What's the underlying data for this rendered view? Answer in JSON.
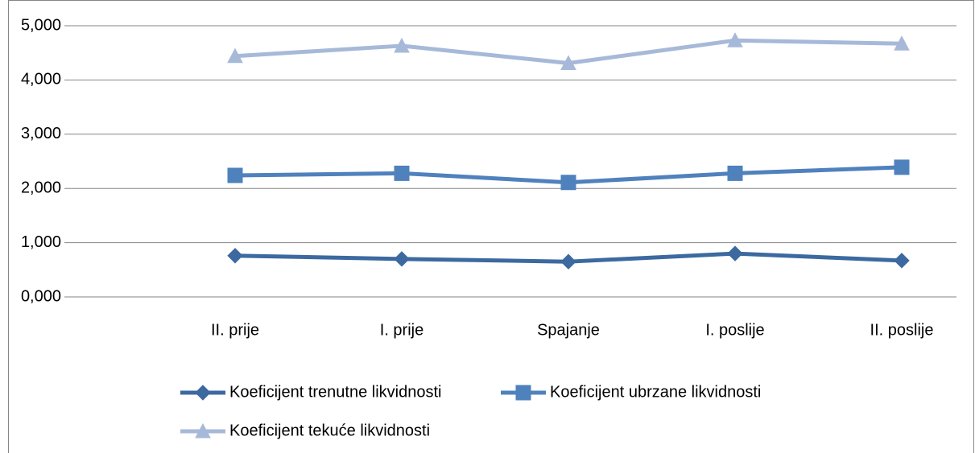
{
  "chart_data": {
    "type": "line",
    "categories": [
      "II. prije",
      "I. prije",
      "Spajanje",
      "I. poslije",
      "II. poslije"
    ],
    "series": [
      {
        "name": "Koeficijent trenutne likvidnosti",
        "color": "#3c69a0",
        "marker": "diamond",
        "values": [
          0.76,
          0.7,
          0.65,
          0.8,
          0.67
        ]
      },
      {
        "name": "Koeficijent ubrzane likvidnosti",
        "color": "#4f81bd",
        "marker": "square",
        "values": [
          2.24,
          2.28,
          2.11,
          2.28,
          2.39
        ]
      },
      {
        "name": "Koeficijent tekuće likvidnosti",
        "color": "#a7b9d8",
        "marker": "triangle",
        "values": [
          4.44,
          4.63,
          4.31,
          4.73,
          4.67
        ]
      }
    ],
    "ylim": [
      0,
      5
    ],
    "yticks": [
      {
        "value": 0,
        "label": "0,000"
      },
      {
        "value": 1,
        "label": "1,000"
      },
      {
        "value": 2,
        "label": "2,000"
      },
      {
        "value": 3,
        "label": "3,000"
      },
      {
        "value": 4,
        "label": "4,000"
      },
      {
        "value": 5,
        "label": "5,000"
      }
    ],
    "grid": true,
    "legend": "bottom"
  }
}
